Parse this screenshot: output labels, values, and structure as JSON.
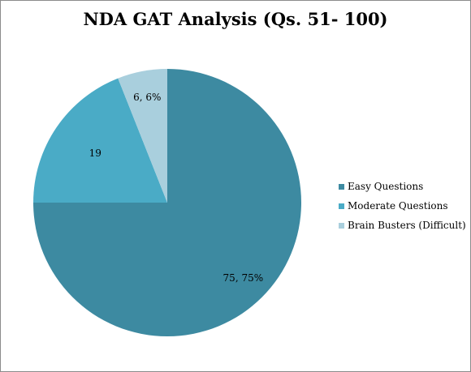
{
  "chart_data": {
    "type": "pie",
    "title": "NDA GAT Analysis (Qs. 51- 100)",
    "slices": [
      {
        "name": "Easy Questions",
        "value": 75,
        "label": "75, 75%",
        "color": "#3d8aa1"
      },
      {
        "name": "Moderate Questions",
        "value": 19,
        "label": "19",
        "color": "#4aabc6"
      },
      {
        "name": "Brain Busters (Difficult)",
        "value": 6,
        "label": "6, 6%",
        "color": "#a9cfdd"
      }
    ],
    "legend_position": "right"
  }
}
